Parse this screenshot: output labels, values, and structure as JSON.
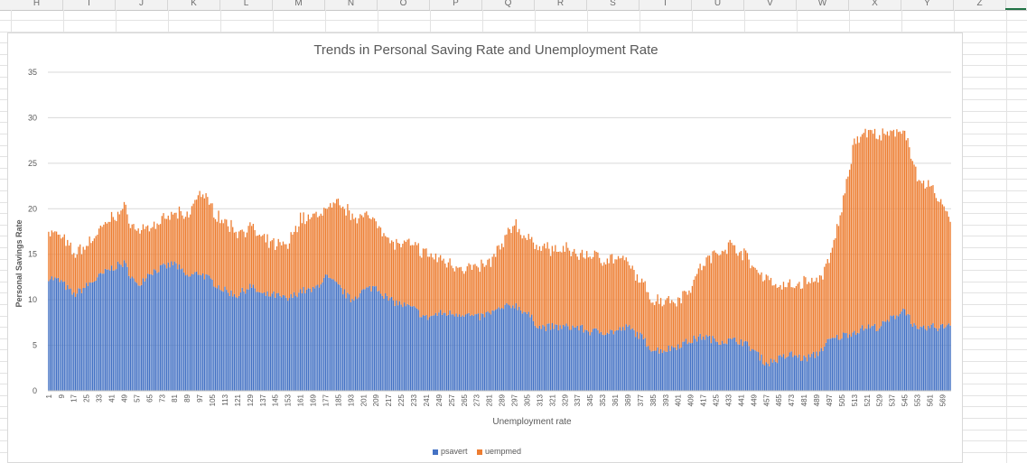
{
  "spreadsheet": {
    "column_letters": [
      "H",
      "I",
      "J",
      "K",
      "L",
      "M",
      "N",
      "O",
      "P",
      "Q",
      "R",
      "S",
      "T",
      "U",
      "V",
      "W",
      "X",
      "Y",
      "Z"
    ],
    "accent_color": "#217346"
  },
  "chart_data": {
    "type": "bar",
    "stacked": true,
    "title": "Trends in Personal Saving Rate and Unemployment Rate",
    "xlabel": "Unemployment rate",
    "ylabel": "Personal Savings Rate",
    "ylim": [
      0,
      35
    ],
    "yticks": [
      0,
      5,
      10,
      15,
      20,
      25,
      30,
      35
    ],
    "grid": true,
    "legend_position": "bottom",
    "n_points": 574,
    "xtick_labels": [
      "1",
      "9",
      "17",
      "25",
      "33",
      "41",
      "49",
      "57",
      "65",
      "73",
      "81",
      "89",
      "97",
      "105",
      "113",
      "121",
      "129",
      "137",
      "145",
      "153",
      "161",
      "169",
      "177",
      "185",
      "193",
      "201",
      "209",
      "217",
      "225",
      "233",
      "241",
      "249",
      "257",
      "265",
      "273",
      "281",
      "289",
      "297",
      "305",
      "313",
      "321",
      "329",
      "337",
      "345",
      "353",
      "361",
      "369",
      "377",
      "385",
      "393",
      "401",
      "409",
      "417",
      "425",
      "433",
      "441",
      "449",
      "457",
      "465",
      "473",
      "481",
      "489",
      "497",
      "505",
      "513",
      "521",
      "529",
      "537",
      "545",
      "553",
      "561",
      "569"
    ],
    "series": [
      {
        "name": "psavert",
        "color": "#4472c4",
        "knots": [
          [
            1,
            12.5
          ],
          [
            9,
            12
          ],
          [
            17,
            10.5
          ],
          [
            25,
            11.5
          ],
          [
            33,
            12.5
          ],
          [
            41,
            13.5
          ],
          [
            49,
            14
          ],
          [
            57,
            11.5
          ],
          [
            65,
            13
          ],
          [
            73,
            13.5
          ],
          [
            81,
            14
          ],
          [
            89,
            12.5
          ],
          [
            97,
            13
          ],
          [
            105,
            12
          ],
          [
            113,
            11
          ],
          [
            121,
            10.5
          ],
          [
            129,
            11.5
          ],
          [
            137,
            10.5
          ],
          [
            145,
            10.5
          ],
          [
            153,
            10
          ],
          [
            161,
            11
          ],
          [
            169,
            11
          ],
          [
            177,
            12.5
          ],
          [
            185,
            11.5
          ],
          [
            193,
            10
          ],
          [
            201,
            11
          ],
          [
            209,
            11.5
          ],
          [
            217,
            10
          ],
          [
            225,
            9.5
          ],
          [
            233,
            9
          ],
          [
            241,
            8
          ],
          [
            249,
            8.5
          ],
          [
            257,
            8.5
          ],
          [
            265,
            8.5
          ],
          [
            273,
            8
          ],
          [
            281,
            8.5
          ],
          [
            289,
            9
          ],
          [
            297,
            9.5
          ],
          [
            305,
            8.5
          ],
          [
            313,
            7
          ],
          [
            321,
            7
          ],
          [
            329,
            7
          ],
          [
            337,
            7
          ],
          [
            345,
            6.5
          ],
          [
            353,
            6.5
          ],
          [
            361,
            6.5
          ],
          [
            369,
            7
          ],
          [
            377,
            6
          ],
          [
            385,
            4.5
          ],
          [
            393,
            4.5
          ],
          [
            401,
            5
          ],
          [
            409,
            5.5
          ],
          [
            417,
            6
          ],
          [
            425,
            5.5
          ],
          [
            433,
            5.5
          ],
          [
            441,
            5.5
          ],
          [
            449,
            4.5
          ],
          [
            457,
            3
          ],
          [
            465,
            3.5
          ],
          [
            473,
            4
          ],
          [
            481,
            3.5
          ],
          [
            489,
            4
          ],
          [
            497,
            5.5
          ],
          [
            505,
            6
          ],
          [
            513,
            6.5
          ],
          [
            521,
            7
          ],
          [
            529,
            7
          ],
          [
            537,
            8
          ],
          [
            545,
            9
          ],
          [
            553,
            6.5
          ],
          [
            561,
            7
          ],
          [
            569,
            7
          ],
          [
            574,
            7.5
          ]
        ]
      },
      {
        "name": "uempmed",
        "color": "#ed7d31",
        "knots": [
          [
            1,
            5
          ],
          [
            9,
            5
          ],
          [
            17,
            4.5
          ],
          [
            25,
            4.5
          ],
          [
            33,
            5
          ],
          [
            41,
            5.5
          ],
          [
            49,
            6
          ],
          [
            57,
            6
          ],
          [
            65,
            5
          ],
          [
            73,
            5
          ],
          [
            81,
            5.5
          ],
          [
            89,
            6.5
          ],
          [
            97,
            9
          ],
          [
            105,
            8
          ],
          [
            113,
            7.5
          ],
          [
            121,
            7
          ],
          [
            129,
            6.5
          ],
          [
            137,
            6
          ],
          [
            145,
            5.5
          ],
          [
            153,
            6
          ],
          [
            161,
            8
          ],
          [
            169,
            8
          ],
          [
            177,
            7.5
          ],
          [
            185,
            9
          ],
          [
            193,
            9.5
          ],
          [
            201,
            8
          ],
          [
            209,
            7.5
          ],
          [
            217,
            6.5
          ],
          [
            225,
            6.5
          ],
          [
            233,
            7
          ],
          [
            241,
            7
          ],
          [
            249,
            6
          ],
          [
            257,
            5.5
          ],
          [
            265,
            5
          ],
          [
            273,
            5.5
          ],
          [
            281,
            5.5
          ],
          [
            289,
            7
          ],
          [
            297,
            9
          ],
          [
            305,
            8
          ],
          [
            313,
            9
          ],
          [
            321,
            8.5
          ],
          [
            329,
            8.5
          ],
          [
            337,
            8
          ],
          [
            345,
            8.5
          ],
          [
            353,
            8
          ],
          [
            361,
            8
          ],
          [
            369,
            7
          ],
          [
            377,
            6
          ],
          [
            385,
            5.5
          ],
          [
            393,
            5.5
          ],
          [
            401,
            5
          ],
          [
            409,
            6
          ],
          [
            417,
            8
          ],
          [
            425,
            9.5
          ],
          [
            433,
            10.5
          ],
          [
            441,
            10
          ],
          [
            449,
            9
          ],
          [
            457,
            9.5
          ],
          [
            465,
            8
          ],
          [
            473,
            7.5
          ],
          [
            481,
            8.5
          ],
          [
            489,
            8
          ],
          [
            497,
            8.5
          ],
          [
            505,
            14
          ],
          [
            513,
            21
          ],
          [
            521,
            21.5
          ],
          [
            529,
            21
          ],
          [
            537,
            20
          ],
          [
            545,
            20
          ],
          [
            553,
            16.5
          ],
          [
            561,
            15.5
          ],
          [
            569,
            13.5
          ],
          [
            574,
            11.5
          ]
        ]
      }
    ]
  }
}
